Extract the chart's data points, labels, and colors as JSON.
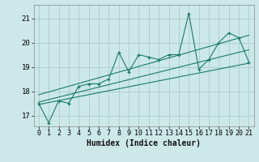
{
  "xlabel": "Humidex (Indice chaleur)",
  "bg_color": "#cce8e8",
  "grid_color": "#aacccc",
  "line_color": "#1a7a6a",
  "xlim": [
    -0.5,
    21.5
  ],
  "ylim": [
    16.55,
    21.55
  ],
  "xticks": [
    0,
    1,
    2,
    3,
    4,
    5,
    6,
    7,
    8,
    9,
    10,
    11,
    12,
    13,
    14,
    15,
    16,
    17,
    18,
    19,
    20,
    21
  ],
  "yticks": [
    17,
    18,
    19,
    20,
    21
  ],
  "series1_x": [
    0,
    1,
    2,
    3,
    4,
    5,
    6,
    7,
    8,
    9,
    10,
    11,
    12,
    13,
    14,
    15,
    16,
    17,
    18,
    19,
    20,
    21
  ],
  "series1_y": [
    17.5,
    16.7,
    17.6,
    17.5,
    18.2,
    18.3,
    18.3,
    18.5,
    19.6,
    18.8,
    19.5,
    19.4,
    19.3,
    19.5,
    19.5,
    21.2,
    18.9,
    19.3,
    20.0,
    20.4,
    20.2,
    19.2
  ],
  "reg_lines": [
    {
      "x": [
        0,
        21
      ],
      "y": [
        17.45,
        19.15
      ]
    },
    {
      "x": [
        0,
        21
      ],
      "y": [
        17.55,
        19.7
      ]
    },
    {
      "x": [
        0,
        21
      ],
      "y": [
        17.85,
        20.3
      ]
    }
  ],
  "tick_fontsize": 6,
  "xlabel_fontsize": 7
}
